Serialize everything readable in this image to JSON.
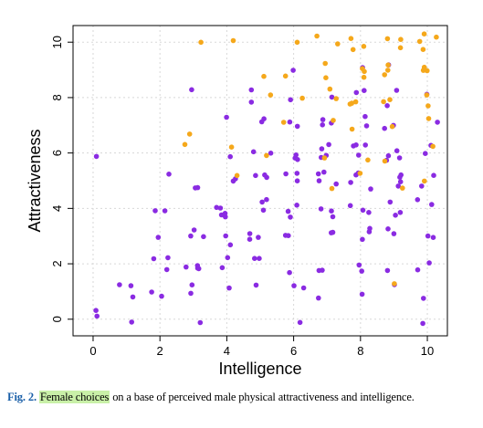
{
  "chart_data": {
    "type": "scatter",
    "xlabel": "Intelligence",
    "ylabel": "Attractiveness",
    "xlim": [
      -0.6,
      10.6
    ],
    "ylim": [
      -0.6,
      10.6
    ],
    "x_ticks": [
      "0",
      "2",
      "4",
      "6",
      "8",
      "10"
    ],
    "y_ticks": [
      "0",
      "2",
      "4",
      "6",
      "8",
      "10"
    ],
    "grid": true,
    "jitter": 0.32,
    "series": [
      {
        "color": "#8a2be2",
        "points": [
          [
            0,
            6
          ],
          [
            0,
            0
          ],
          [
            0,
            0
          ],
          [
            1,
            1
          ],
          [
            1,
            1
          ],
          [
            1,
            0
          ],
          [
            1,
            1
          ],
          [
            2,
            1
          ],
          [
            2,
            2
          ],
          [
            2,
            2
          ],
          [
            2,
            1
          ],
          [
            2,
            4
          ],
          [
            2,
            4
          ],
          [
            2,
            5
          ],
          [
            2,
            3
          ],
          [
            2,
            2
          ],
          [
            3,
            2
          ],
          [
            3,
            3
          ],
          [
            3,
            3
          ],
          [
            3,
            2
          ],
          [
            3,
            1
          ],
          [
            3,
            0
          ],
          [
            3,
            3
          ],
          [
            3,
            5
          ],
          [
            3,
            5
          ],
          [
            3,
            2
          ],
          [
            3,
            2
          ],
          [
            3,
            1
          ],
          [
            3,
            8
          ],
          [
            4,
            4
          ],
          [
            4,
            4
          ],
          [
            4,
            3
          ],
          [
            4,
            2
          ],
          [
            4,
            4
          ],
          [
            4,
            5
          ],
          [
            4,
            2
          ],
          [
            4,
            1
          ],
          [
            4,
            4
          ],
          [
            4,
            3
          ],
          [
            4,
            6
          ],
          [
            4,
            7
          ],
          [
            4,
            4
          ],
          [
            4,
            5
          ],
          [
            5,
            3
          ],
          [
            5,
            4
          ],
          [
            5,
            5
          ],
          [
            5,
            5
          ],
          [
            5,
            6
          ],
          [
            5,
            6
          ],
          [
            5,
            7
          ],
          [
            5,
            7
          ],
          [
            5,
            8
          ],
          [
            5,
            8
          ],
          [
            5,
            2
          ],
          [
            5,
            1
          ],
          [
            5,
            2
          ],
          [
            5,
            3
          ],
          [
            5,
            3
          ],
          [
            5,
            5
          ],
          [
            5,
            4
          ],
          [
            5,
            4
          ],
          [
            6,
            2
          ],
          [
            6,
            3
          ],
          [
            6,
            4
          ],
          [
            6,
            5
          ],
          [
            6,
            5
          ],
          [
            6,
            6
          ],
          [
            6,
            6
          ],
          [
            6,
            7
          ],
          [
            6,
            7
          ],
          [
            6,
            8
          ],
          [
            6,
            4
          ],
          [
            6,
            3
          ],
          [
            6,
            1
          ],
          [
            6,
            1
          ],
          [
            6,
            0
          ],
          [
            6,
            9
          ],
          [
            6,
            5
          ],
          [
            6,
            4
          ],
          [
            6,
            6
          ],
          [
            7,
            1
          ],
          [
            7,
            2
          ],
          [
            7,
            3
          ],
          [
            7,
            4
          ],
          [
            7,
            4
          ],
          [
            7,
            5
          ],
          [
            7,
            5
          ],
          [
            7,
            5
          ],
          [
            7,
            6
          ],
          [
            7,
            6
          ],
          [
            7,
            6
          ],
          [
            7,
            7
          ],
          [
            7,
            7
          ],
          [
            7,
            8
          ],
          [
            7,
            3
          ],
          [
            7,
            2
          ],
          [
            7,
            4
          ],
          [
            7,
            5
          ],
          [
            7,
            6
          ],
          [
            7,
            7
          ],
          [
            8,
            1
          ],
          [
            8,
            2
          ],
          [
            8,
            3
          ],
          [
            8,
            3
          ],
          [
            8,
            4
          ],
          [
            8,
            4
          ],
          [
            8,
            5
          ],
          [
            8,
            5
          ],
          [
            8,
            5
          ],
          [
            8,
            6
          ],
          [
            8,
            6
          ],
          [
            8,
            6
          ],
          [
            8,
            7
          ],
          [
            8,
            7
          ],
          [
            8,
            8
          ],
          [
            8,
            8
          ],
          [
            8,
            9
          ],
          [
            8,
            2
          ],
          [
            8,
            3
          ],
          [
            8,
            4
          ],
          [
            8,
            5
          ],
          [
            8,
            6
          ],
          [
            9,
            1
          ],
          [
            9,
            2
          ],
          [
            9,
            3
          ],
          [
            9,
            4
          ],
          [
            9,
            4
          ],
          [
            9,
            5
          ],
          [
            9,
            5
          ],
          [
            9,
            5
          ],
          [
            9,
            6
          ],
          [
            9,
            6
          ],
          [
            9,
            6
          ],
          [
            9,
            7
          ],
          [
            9,
            7
          ],
          [
            9,
            8
          ],
          [
            9,
            8
          ],
          [
            9,
            9
          ],
          [
            9,
            3
          ],
          [
            9,
            4
          ],
          [
            9,
            5
          ],
          [
            9,
            6
          ],
          [
            10,
            1
          ],
          [
            10,
            2
          ],
          [
            10,
            3
          ],
          [
            10,
            4
          ],
          [
            10,
            5
          ],
          [
            10,
            5
          ],
          [
            10,
            6
          ],
          [
            10,
            6
          ],
          [
            10,
            7
          ],
          [
            10,
            8
          ],
          [
            10,
            3
          ],
          [
            10,
            4
          ],
          [
            10,
            0
          ],
          [
            10,
            2
          ]
        ]
      },
      {
        "color": "#f5a81b",
        "points": [
          [
            3,
            10
          ],
          [
            3,
            7
          ],
          [
            3,
            6
          ],
          [
            4,
            10
          ],
          [
            4,
            5
          ],
          [
            4,
            6
          ],
          [
            5,
            8
          ],
          [
            5,
            9
          ],
          [
            5,
            6
          ],
          [
            6,
            10
          ],
          [
            6,
            8
          ],
          [
            6,
            7
          ],
          [
            6,
            9
          ],
          [
            7,
            10
          ],
          [
            7,
            9
          ],
          [
            7,
            8
          ],
          [
            7,
            8
          ],
          [
            7,
            7
          ],
          [
            7,
            6
          ],
          [
            7,
            5
          ],
          [
            7,
            10
          ],
          [
            7,
            9
          ],
          [
            8,
            10
          ],
          [
            8,
            10
          ],
          [
            8,
            9
          ],
          [
            8,
            9
          ],
          [
            8,
            8
          ],
          [
            8,
            8
          ],
          [
            8,
            7
          ],
          [
            8,
            6
          ],
          [
            8,
            5
          ],
          [
            8,
            10
          ],
          [
            8,
            9
          ],
          [
            8,
            8
          ],
          [
            9,
            10
          ],
          [
            9,
            10
          ],
          [
            9,
            9
          ],
          [
            9,
            9
          ],
          [
            9,
            8
          ],
          [
            9,
            8
          ],
          [
            9,
            7
          ],
          [
            9,
            6
          ],
          [
            9,
            5
          ],
          [
            9,
            1
          ],
          [
            9,
            10
          ],
          [
            9,
            9
          ],
          [
            10,
            10
          ],
          [
            10,
            10
          ],
          [
            10,
            10
          ],
          [
            10,
            9
          ],
          [
            10,
            9
          ],
          [
            10,
            8
          ],
          [
            10,
            8
          ],
          [
            10,
            7
          ],
          [
            10,
            6
          ],
          [
            10,
            5
          ],
          [
            10,
            10
          ],
          [
            10,
            9
          ]
        ]
      }
    ]
  },
  "caption": {
    "label": "Fig. 2.",
    "highlight": "Female choices",
    "text": " on a base of perceived male physical attractiveness and intelligence."
  }
}
